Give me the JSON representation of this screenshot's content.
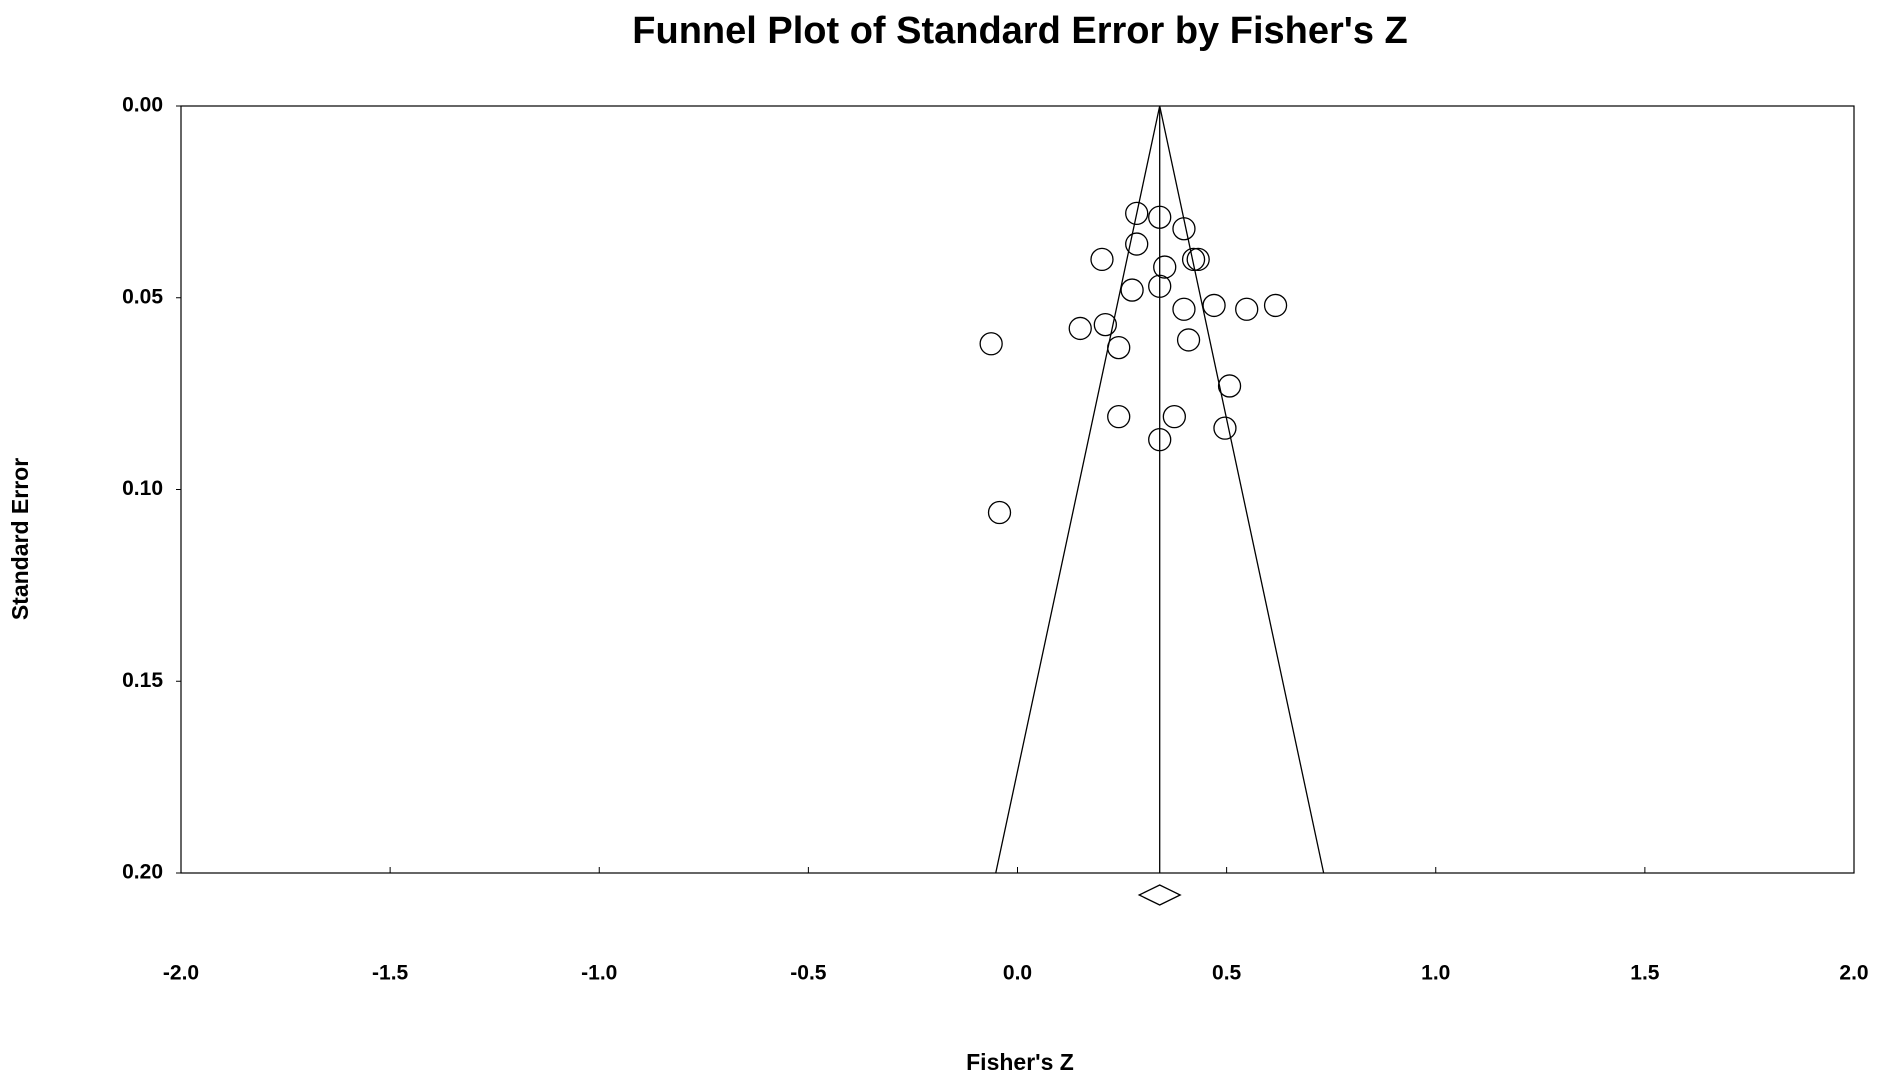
{
  "chart_data": {
    "type": "funnel",
    "title": "Funnel Plot of Standard Error by Fisher's Z",
    "x_label": "Fisher's Z",
    "y_label": "Standard Error",
    "xlim": [
      -2,
      2
    ],
    "ylim": [
      0,
      0.2
    ],
    "y_inverted": true,
    "xticks": [
      {
        "value": -2,
        "label": "-2.0"
      },
      {
        "value": -1.5,
        "label": "-1.5"
      },
      {
        "value": -1,
        "label": "-1.0"
      },
      {
        "value": -0.5,
        "label": "-0.5"
      },
      {
        "value": 0,
        "label": "0.0"
      },
      {
        "value": 0.5,
        "label": "0.5"
      },
      {
        "value": 1,
        "label": "1.0"
      },
      {
        "value": 1.5,
        "label": "1.5"
      },
      {
        "value": 2,
        "label": "2.0"
      }
    ],
    "yticks": [
      {
        "value": 0,
        "label": "0.00"
      },
      {
        "value": 0.05,
        "label": "0.05"
      },
      {
        "value": 0.1,
        "label": "0.10"
      },
      {
        "value": 0.15,
        "label": "0.15"
      },
      {
        "value": 0.2,
        "label": "0.20"
      }
    ],
    "color": "#000000",
    "x": [
      0.285,
      0.34,
      0.398,
      0.285,
      0.202,
      0.421,
      0.432,
      0.352,
      0.274,
      0.34,
      0.47,
      0.398,
      0.548,
      0.617,
      0.15,
      0.21,
      -0.063,
      0.242,
      0.409,
      0.507,
      0.242,
      0.375,
      0.496,
      0.34,
      -0.043
    ],
    "values": [
      0.028,
      0.029,
      0.032,
      0.036,
      0.04,
      0.04,
      0.04,
      0.042,
      0.048,
      0.047,
      0.052,
      0.053,
      0.053,
      0.052,
      0.058,
      0.057,
      0.062,
      0.063,
      0.061,
      0.073,
      0.081,
      0.081,
      0.084,
      0.087,
      0.106
    ],
    "funnel": {
      "x": [
        -0.052,
        0.34,
        0.732
      ],
      "y": [
        0.2,
        0,
        0.2
      ]
    },
    "summary": {
      "x": 0.34,
      "ci": [
        0.291,
        0.389
      ]
    }
  }
}
